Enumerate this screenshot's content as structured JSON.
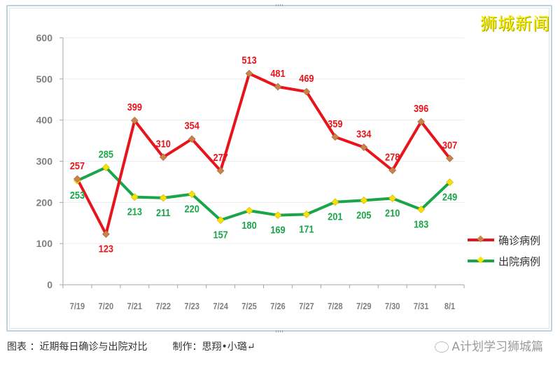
{
  "brand": "狮城新闻",
  "caption": {
    "left": "图表 ：近期每日确诊与出院对比",
    "right": "制作：思翔•小璐↵"
  },
  "watermark": "A计划学习狮城篇",
  "legend": {
    "confirmed": "确诊病例",
    "discharged": "出院病例"
  },
  "colors": {
    "confirmed_line": "#e8141b",
    "confirmed_marker": "#c8844a",
    "discharged_line": "#1aa648",
    "discharged_marker": "#f5e300",
    "confirmed_label": "#e8141b",
    "discharged_label": "#1aa648",
    "axis_text": "#7f7f7f"
  },
  "chart_data": {
    "type": "line",
    "title": "",
    "xlabel": "",
    "ylabel": "",
    "ylim": [
      0,
      600
    ],
    "yticks": [
      0,
      100,
      200,
      300,
      400,
      500,
      600
    ],
    "grid": true,
    "legend_position": "right",
    "categories": [
      "7/19",
      "7/20",
      "7/21",
      "7/22",
      "7/23",
      "7/24",
      "7/25",
      "7/26",
      "7/27",
      "7/28",
      "7/29",
      "7/30",
      "7/31",
      "8/1"
    ],
    "series": [
      {
        "name": "确诊病例",
        "values": [
          257,
          123,
          399,
          310,
          354,
          277,
          513,
          481,
          469,
          359,
          334,
          278,
          396,
          307
        ]
      },
      {
        "name": "出院病例",
        "values": [
          253,
          285,
          213,
          211,
          220,
          157,
          180,
          169,
          171,
          201,
          205,
          210,
          183,
          249
        ]
      }
    ]
  }
}
